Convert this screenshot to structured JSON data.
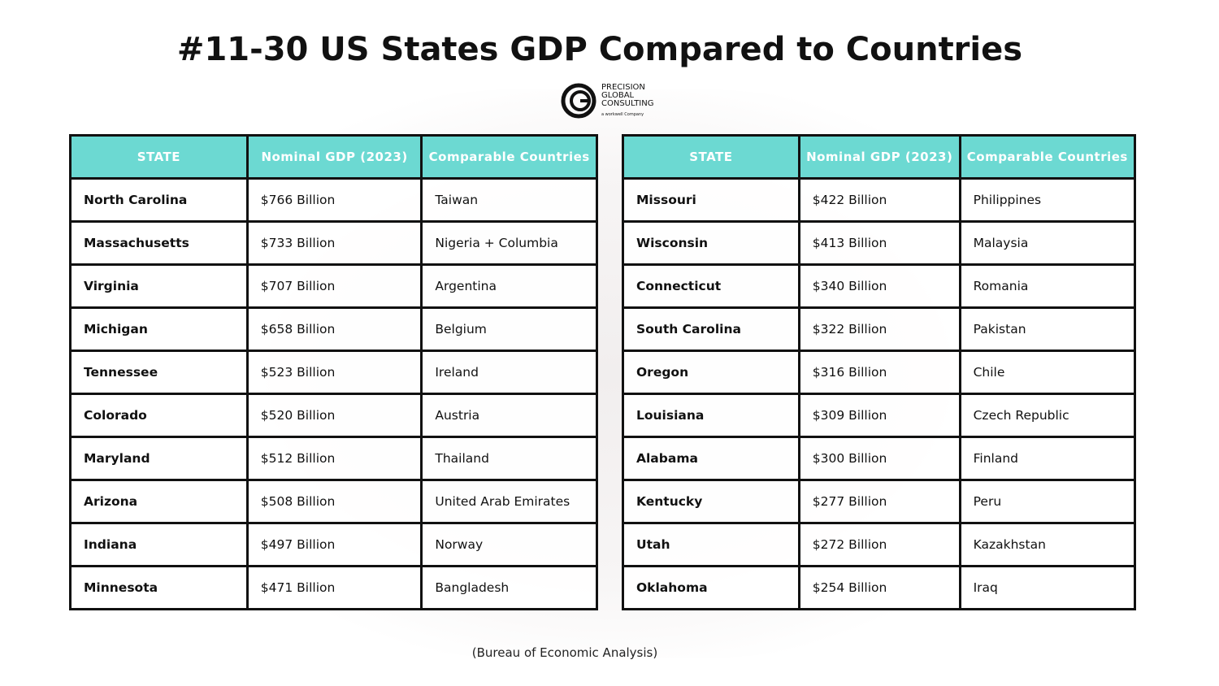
{
  "title": "#11-30 US States GDP Compared to Countries",
  "logo": {
    "lines": [
      "PRECISION",
      "GLOBAL",
      "CONSULTING"
    ],
    "tagline": "a workwell Company"
  },
  "tables": [
    {
      "header": [
        "STATE",
        "Nominal GDP (2023)",
        "Comparable Countries"
      ],
      "rows": [
        [
          "North Carolina",
          "$766 Billion",
          "Taiwan"
        ],
        [
          "Massachusetts",
          "$733 Billion",
          "Nigeria + Columbia"
        ],
        [
          "Virginia",
          "$707 Billion",
          "Argentina"
        ],
        [
          "Michigan",
          "$658 Billion",
          "Belgium"
        ],
        [
          "Tennessee",
          "$523 Billion",
          "Ireland"
        ],
        [
          "Colorado",
          "$520 Billion",
          "Austria"
        ],
        [
          "Maryland",
          "$512 Billion",
          "Thailand"
        ],
        [
          "Arizona",
          "$508 Billion",
          "United Arab Emirates"
        ],
        [
          "Indiana",
          "$497 Billion",
          "Norway"
        ],
        [
          "Minnesota",
          "$471 Billion",
          "Bangladesh"
        ]
      ]
    },
    {
      "header": [
        "STATE",
        "Nominal GDP (2023)",
        "Comparable Countries"
      ],
      "rows": [
        [
          "Missouri",
          "$422 Billion",
          "Philippines"
        ],
        [
          "Wisconsin",
          "$413 Billion",
          "Malaysia"
        ],
        [
          "Connecticut",
          "$340 Billion",
          "Romania"
        ],
        [
          "South Carolina",
          "$322 Billion",
          "Pakistan"
        ],
        [
          "Oregon",
          "$316 Billion",
          "Chile"
        ],
        [
          "Louisiana",
          "$309 Billion",
          "Czech Republic"
        ],
        [
          "Alabama",
          "$300 Billion",
          "Finland"
        ],
        [
          "Kentucky",
          "$277 Billion",
          "Peru"
        ],
        [
          "Utah",
          "$272 Billion",
          "Kazakhstan"
        ],
        [
          "Oklahoma",
          "$254 Billion",
          "Iraq"
        ]
      ]
    }
  ],
  "source": "(Bureau of Economic Analysis)"
}
